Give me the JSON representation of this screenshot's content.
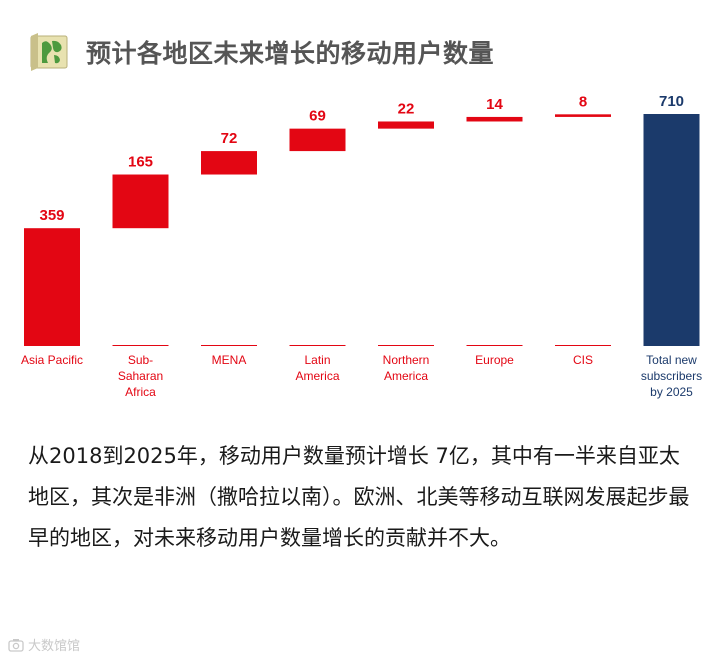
{
  "title": "预计各地区未来增长的移动用户数量",
  "chart_data": {
    "type": "bar",
    "subtype": "waterfall",
    "categories": [
      "Asia Pacific",
      "Sub-Saharan Africa",
      "MENA",
      "Latin America",
      "Northern America",
      "Europe",
      "CIS",
      "Total new subscribers by 2025"
    ],
    "category_lines": [
      [
        "Asia Pacific"
      ],
      [
        "Sub-",
        "Saharan",
        "Africa"
      ],
      [
        "MENA"
      ],
      [
        "Latin",
        "America"
      ],
      [
        "Northern",
        "America"
      ],
      [
        "Europe"
      ],
      [
        "CIS"
      ],
      [
        "Total new",
        "subscribers",
        "by 2025"
      ]
    ],
    "values": [
      359,
      165,
      72,
      69,
      22,
      14,
      8,
      710
    ],
    "is_total": [
      false,
      false,
      false,
      false,
      false,
      false,
      false,
      true
    ],
    "ylim": [
      0,
      710
    ],
    "grid": false,
    "colors": {
      "increment": "#e30613",
      "total": "#1b3a6b",
      "increment_label": "#e30613",
      "total_label": "#1b3a6b"
    }
  },
  "paragraph": "从2018到2025年，移动用户数量预计增长 7亿，其中有一半来自亚太地区，其次是非洲（撒哈拉以南）。欧洲、北美等移动互联网发展起步最早的地区，对未来移动用户数量增长的贡献并不大。",
  "watermark": "大数馆馆",
  "icons": {
    "logo": "map-logo-icon",
    "watermark": "camera-icon"
  }
}
